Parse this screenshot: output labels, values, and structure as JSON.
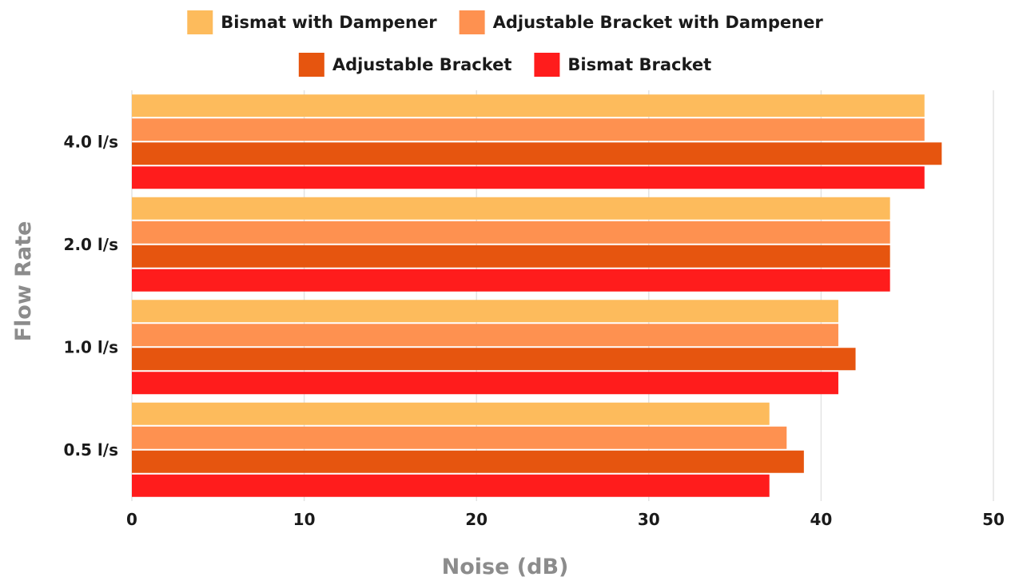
{
  "chart_data": {
    "type": "bar",
    "orientation": "horizontal",
    "categories": [
      "0.5 l/s",
      "1.0 l/s",
      "2.0 l/s",
      "4.0 l/s"
    ],
    "series": [
      {
        "name": "Bismat with Dampener",
        "color": "#FDBB5C",
        "values": [
          37,
          41,
          44,
          46
        ]
      },
      {
        "name": "Adjustable Bracket with Dampener",
        "color": "#FE9150",
        "values": [
          38,
          41,
          44,
          46
        ]
      },
      {
        "name": "Adjustable Bracket",
        "color": "#E6550F",
        "values": [
          39,
          42,
          44,
          47
        ]
      },
      {
        "name": "Bismat Bracket",
        "color": "#FF1C1C",
        "values": [
          37,
          41,
          44,
          46
        ]
      }
    ],
    "xlabel": "Noise (dB)",
    "ylabel": "Flow Rate",
    "xlim": [
      0,
      50
    ],
    "xticks": [
      "0",
      "10",
      "20",
      "30",
      "40",
      "50"
    ],
    "grid": true,
    "legend_position": "top"
  }
}
